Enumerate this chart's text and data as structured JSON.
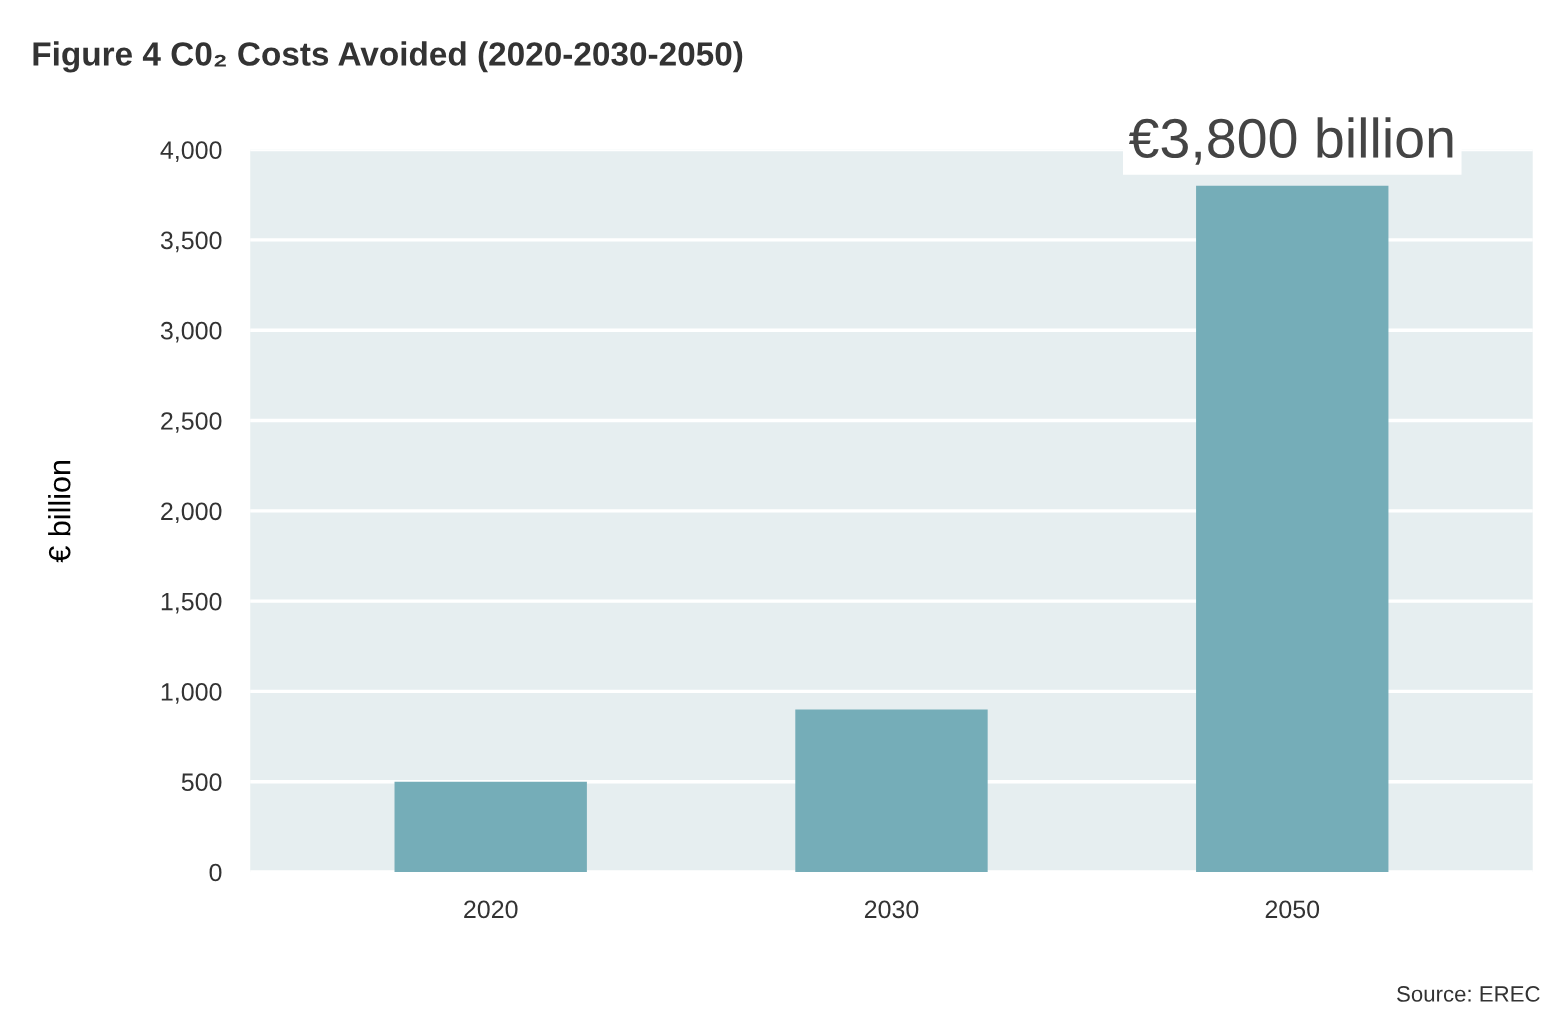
{
  "chart_data": {
    "type": "bar",
    "title": "Figure 4 C0₂ Costs Avoided (2020-2030-2050)",
    "ylabel": "€ billion",
    "categories": [
      "2020",
      "2030",
      "2050"
    ],
    "values": [
      500,
      900,
      3800
    ],
    "color": "#75adb8",
    "value_labels": [
      null,
      null,
      "€3,800 billion"
    ],
    "ylim": [
      0,
      4000
    ],
    "yticks": [
      0,
      {
        "value": 500,
        "label": "500"
      },
      {
        "value": 1000,
        "label": "1,000"
      },
      {
        "value": 1500,
        "label": "1,500"
      },
      {
        "value": 2000,
        "label": "2,000"
      },
      {
        "value": 2500,
        "label": "2,500"
      },
      {
        "value": 3000,
        "label": "3,000"
      },
      {
        "value": 3500,
        "label": "3,500"
      },
      {
        "value": 4000,
        "label": "4,000"
      }
    ],
    "grid": "y",
    "annotations": [
      "Source: EREC"
    ]
  }
}
